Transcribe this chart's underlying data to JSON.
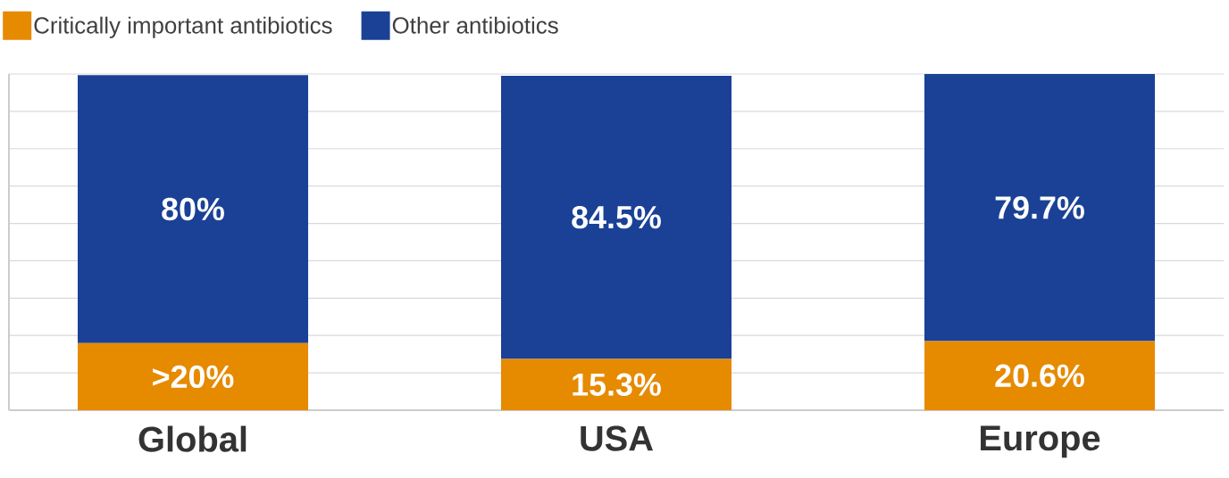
{
  "chart_data": {
    "type": "bar",
    "stacked": true,
    "categories": [
      "Global",
      "USA",
      "Europe"
    ],
    "series": [
      {
        "name": "Critically important antibiotics",
        "color": "#e68a00",
        "values": [
          20,
          15.3,
          20.6
        ],
        "value_labels": [
          ">20%",
          "15.3%",
          "20.6%"
        ]
      },
      {
        "name": "Other antibiotics",
        "color": "#1a4196",
        "values": [
          80,
          84.5,
          79.7
        ],
        "value_labels": [
          "80%",
          "84.5%",
          "79.7%"
        ]
      }
    ],
    "grid": "y",
    "tick_labels": "x",
    "legend": "top left"
  }
}
